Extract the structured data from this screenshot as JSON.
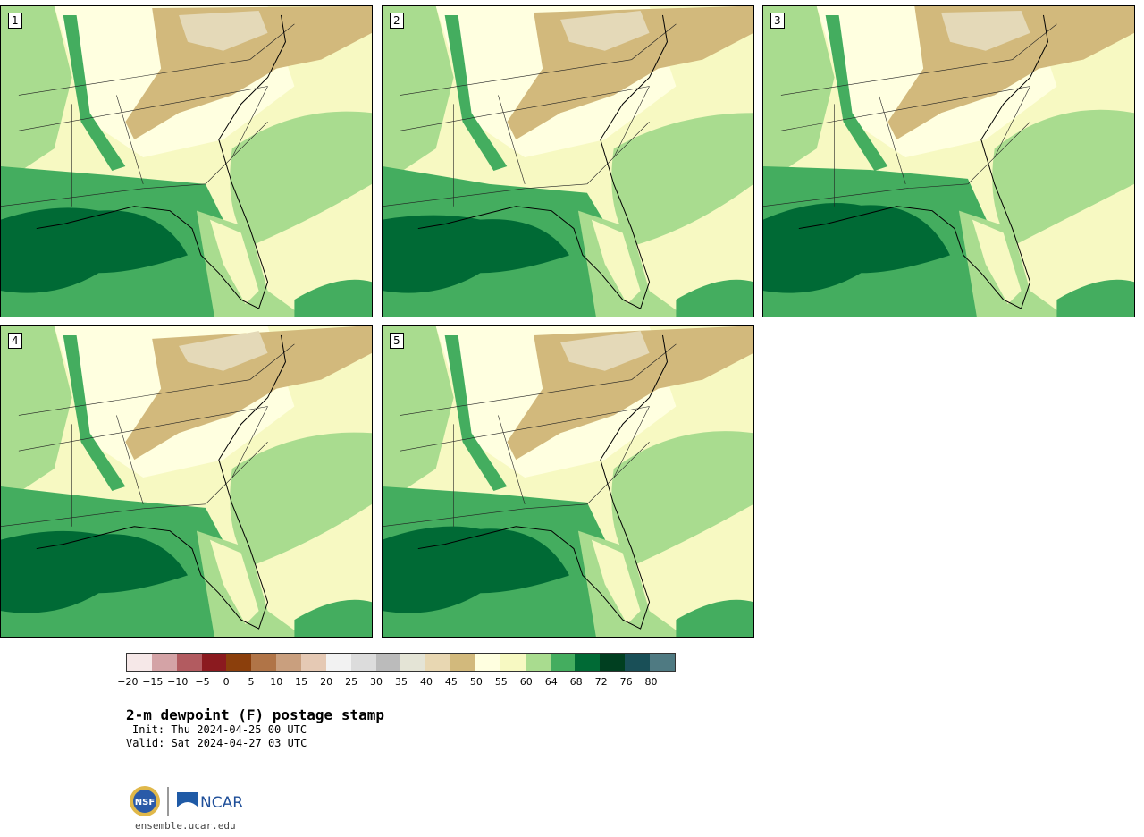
{
  "panels": [
    {
      "label": "1"
    },
    {
      "label": "2"
    },
    {
      "label": "3"
    },
    {
      "label": "4"
    },
    {
      "label": "5"
    }
  ],
  "colorbar": {
    "colors": [
      "#f6e8e8",
      "#d4a3a6",
      "#b25b60",
      "#8b1a1f",
      "#8b3f0c",
      "#b07447",
      "#c99f7e",
      "#e5c9b4",
      "#f2f2f2",
      "#dcdcdc",
      "#bbbbbb",
      "#e4e4d6",
      "#e8d7b2",
      "#d2b97c",
      "#ffffe0",
      "#f7f9c2",
      "#a9dc8f",
      "#44ad5f",
      "#006a35",
      "#003f20",
      "#194f57",
      "#4f7a82"
    ],
    "tick_labels": [
      "−20",
      "−15",
      "−10",
      "−5",
      "0",
      "5",
      "10",
      "15",
      "20",
      "25",
      "30",
      "35",
      "40",
      "45",
      "50",
      "55",
      "60",
      "64",
      "68",
      "72",
      "76",
      "80"
    ]
  },
  "title": "2-m dewpoint (F) postage stamp",
  "init": "Init: Thu 2024-04-25 00 UTC",
  "valid": "Valid: Sat 2024-04-27 03 UTC",
  "footer": {
    "site": "ensemble.ucar.edu",
    "logo_text": "NCAR",
    "logo_left": "NSF"
  },
  "map_colors": {
    "tan": "#d2b97c",
    "light_tan": "#e4d9b8",
    "cream": "#ffffe0",
    "pale_yellow": "#f7f9c2",
    "light_green": "#a9dc8f",
    "mid_green": "#44ad5f",
    "dark_green": "#006a35"
  }
}
